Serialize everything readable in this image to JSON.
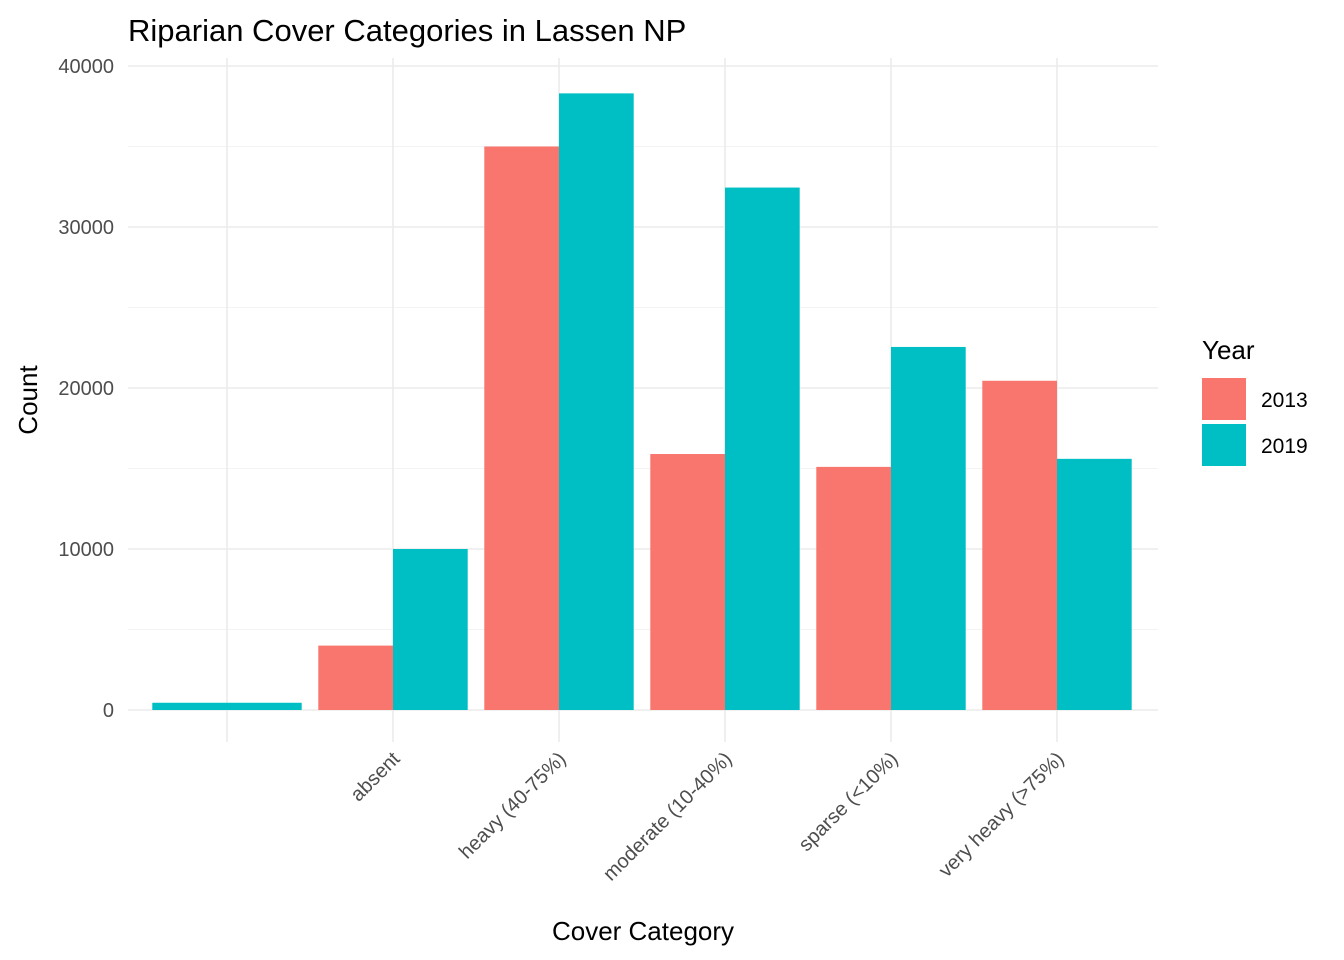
{
  "chart_data": {
    "type": "bar",
    "title": "Riparian Cover Categories in Lassen NP",
    "xlabel": "Cover Category",
    "ylabel": "Count",
    "categories": [
      "",
      "absent",
      "heavy (40-75%)",
      "moderate (10-40%)",
      "sparse (<10%)",
      "very heavy (>75%)"
    ],
    "series": [
      {
        "name": "2013",
        "color": "#F8766D",
        "values": [
          null,
          4000,
          35000,
          15900,
          15100,
          20450
        ]
      },
      {
        "name": "2019",
        "color": "#00BFC4",
        "values": [
          450,
          10000,
          38300,
          32450,
          22550,
          15600
        ]
      }
    ],
    "ylim": [
      0,
      40000
    ],
    "yticks": [
      0,
      10000,
      20000,
      30000,
      40000
    ],
    "grid": true,
    "legend": {
      "title": "Year",
      "placement": "right",
      "entries": [
        "2013",
        "2019"
      ]
    }
  }
}
